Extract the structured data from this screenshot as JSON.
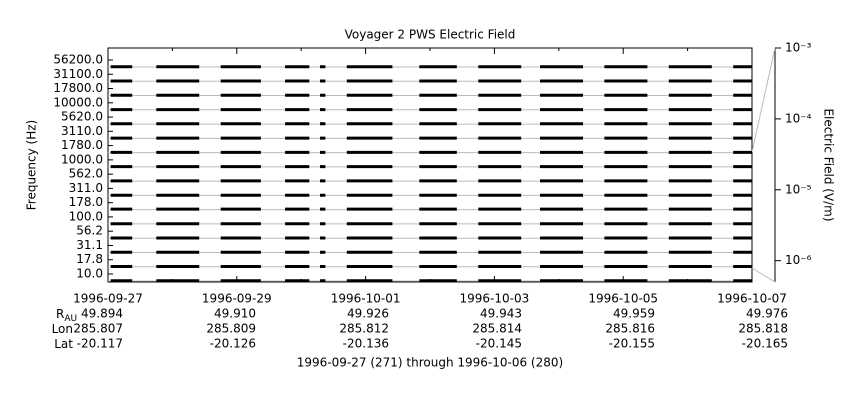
{
  "chart_data": {
    "type": "strips",
    "title": "Voyager 2 PWS Electric Field",
    "ylabel": "Frequency (Hz)",
    "y2label": "Electric Field (V/m)",
    "footer": "1996-09-27 (271) through 1996-10-06 (280)",
    "xlim": [
      "1996-09-27",
      "1996-10-07"
    ],
    "xticks": [
      "1996-09-27",
      "1996-09-29",
      "1996-10-01",
      "1996-10-03",
      "1996-10-05",
      "1996-10-07"
    ],
    "xminor": [
      "1996-09-28",
      "1996-09-30",
      "1996-10-02",
      "1996-10-04",
      "1996-10-06"
    ],
    "y2lim": [
      5e-07,
      0.001
    ],
    "y2log": true,
    "y2ticks": [
      {
        "value": 0.001,
        "label": "10⁻³"
      },
      {
        "value": 0.0001,
        "label": "10⁻⁴"
      },
      {
        "value": 1e-05,
        "label": "10⁻⁵"
      },
      {
        "value": 1e-06,
        "label": "10⁻⁶"
      }
    ],
    "grid": true,
    "color": "#000000",
    "x": [
      "1996-09-27 01:00",
      "1996-09-27 09:00",
      "1996-09-27 14:00",
      "1996-09-27 18:00",
      "1996-09-28 10:00",
      "1996-09-28 14:00",
      "1996-09-28 18:00",
      "1996-09-29 09:00",
      "1996-09-29 14:00",
      "1996-09-29 18:00",
      "1996-09-30 03:00",
      "1996-09-30 05:00",
      "1996-09-30 07:00",
      "1996-09-30 09:00",
      "1996-09-30 13:00",
      "1996-09-30 17:00",
      "1996-10-01 10:00",
      "1996-10-01 15:00",
      "1996-10-01 20:00",
      "1996-10-02 10:00",
      "1996-10-02 14:00",
      "1996-10-02 18:00",
      "1996-10-03 10:00",
      "1996-10-03 14:00",
      "1996-10-03 17:00",
      "1996-10-04 09:00",
      "1996-10-04 13:00",
      "1996-10-04 17:00",
      "1996-10-05 09:00",
      "1996-10-05 13:00",
      "1996-10-05 17:00",
      "1996-10-06 09:00",
      "1996-10-06 13:00",
      "1996-10-06 17:00",
      "1996-10-07 00:00"
    ],
    "series": [
      {
        "name": "56200.0",
        "values": [
          6e-07,
          6e-07,
          null,
          6e-07,
          6e-07,
          null,
          6e-07,
          6e-07,
          null,
          6e-07,
          6e-07,
          null,
          6e-07,
          6e-07,
          null,
          6e-07,
          6e-07,
          null,
          6e-07,
          6e-07,
          null,
          6e-07,
          6e-07,
          null,
          6e-07,
          6e-07,
          null,
          6e-07,
          6e-07,
          null,
          6e-07,
          6e-07,
          null,
          6e-07,
          6e-07
        ]
      },
      {
        "name": "31100.0",
        "values": [
          6e-07,
          6e-07,
          null,
          6e-07,
          6e-07,
          null,
          6e-07,
          6e-07,
          null,
          6e-07,
          6e-07,
          null,
          6e-07,
          6e-07,
          null,
          6e-07,
          6e-07,
          null,
          6e-07,
          6e-07,
          null,
          6e-07,
          6e-07,
          null,
          6e-07,
          6e-07,
          null,
          6e-07,
          6e-07,
          null,
          6e-07,
          6e-07,
          null,
          6e-07,
          6e-07
        ]
      },
      {
        "name": "17800.0",
        "values": [
          6e-07,
          6e-07,
          null,
          6e-07,
          6e-07,
          null,
          6e-07,
          6e-07,
          null,
          6e-07,
          6e-07,
          null,
          6e-07,
          6e-07,
          null,
          6e-07,
          6e-07,
          null,
          6e-07,
          6e-07,
          null,
          6e-07,
          6e-07,
          null,
          6e-07,
          6e-07,
          null,
          6e-07,
          6e-07,
          null,
          6e-07,
          6e-07,
          null,
          6e-07,
          6e-07
        ]
      },
      {
        "name": "10000.0",
        "values": [
          6e-07,
          6e-07,
          null,
          6e-07,
          6e-07,
          null,
          6e-07,
          6e-07,
          null,
          6e-07,
          6e-07,
          null,
          6e-07,
          6e-07,
          null,
          6e-07,
          6e-07,
          null,
          6e-07,
          6e-07,
          null,
          6e-07,
          6e-07,
          null,
          6e-07,
          6e-07,
          null,
          6e-07,
          6e-07,
          null,
          6e-07,
          6e-07,
          null,
          6e-07,
          6e-07
        ]
      },
      {
        "name": "5620.0",
        "values": [
          6e-07,
          6e-07,
          null,
          6e-07,
          6e-07,
          null,
          6e-07,
          6e-07,
          null,
          6e-07,
          6e-07,
          null,
          6e-07,
          6e-07,
          null,
          6e-07,
          6e-07,
          null,
          6e-07,
          6e-07,
          null,
          6e-07,
          6e-07,
          null,
          6e-07,
          6e-07,
          null,
          6e-07,
          6e-07,
          null,
          6e-07,
          6e-07,
          null,
          6e-07,
          6e-07
        ]
      },
      {
        "name": "3110.0",
        "values": [
          6e-07,
          6e-07,
          null,
          6e-07,
          6e-07,
          null,
          6e-07,
          6e-07,
          null,
          6e-07,
          6e-07,
          null,
          6e-07,
          6e-07,
          null,
          6e-07,
          6e-07,
          null,
          6e-07,
          6e-07,
          null,
          6e-07,
          6e-07,
          null,
          6e-07,
          6e-07,
          null,
          6e-07,
          6e-07,
          null,
          6e-07,
          6e-07,
          null,
          6e-07,
          6e-07
        ]
      },
      {
        "name": "1780.0",
        "values": [
          6e-07,
          6e-07,
          null,
          6e-07,
          6e-07,
          null,
          6e-07,
          6e-07,
          null,
          6e-07,
          6e-07,
          null,
          6e-07,
          6e-07,
          null,
          6e-07,
          6e-07,
          null,
          6e-07,
          6e-07,
          null,
          6e-07,
          6e-07,
          null,
          6e-07,
          6e-07,
          null,
          6e-07,
          6e-07,
          null,
          6e-07,
          6e-07,
          null,
          6e-07,
          6e-07
        ]
      },
      {
        "name": "1000.0",
        "values": [
          6e-07,
          6e-07,
          null,
          6e-07,
          6e-07,
          null,
          6e-07,
          6e-07,
          null,
          6e-07,
          6e-07,
          null,
          6e-07,
          6e-07,
          null,
          6e-07,
          6e-07,
          null,
          6e-07,
          6e-07,
          null,
          6e-07,
          6e-07,
          null,
          6e-07,
          6e-07,
          null,
          6e-07,
          6e-07,
          null,
          6e-07,
          6e-07,
          null,
          6e-07,
          6e-07
        ]
      },
      {
        "name": "562.0",
        "values": [
          6e-07,
          6e-07,
          null,
          6e-07,
          6e-07,
          null,
          6e-07,
          6e-07,
          null,
          6e-07,
          6e-07,
          null,
          6e-07,
          6e-07,
          null,
          6e-07,
          6e-07,
          null,
          6e-07,
          6e-07,
          null,
          6e-07,
          6e-07,
          null,
          6e-07,
          6e-07,
          null,
          6e-07,
          6e-07,
          null,
          6e-07,
          6e-07,
          null,
          6e-07,
          6e-07
        ]
      },
      {
        "name": "311.0",
        "values": [
          6e-07,
          6e-07,
          null,
          6e-07,
          6e-07,
          null,
          6e-07,
          6e-07,
          null,
          6e-07,
          6e-07,
          null,
          6e-07,
          6e-07,
          null,
          6e-07,
          6e-07,
          null,
          6e-07,
          6e-07,
          null,
          6e-07,
          6e-07,
          null,
          6e-07,
          6e-07,
          null,
          6e-07,
          6e-07,
          null,
          6e-07,
          6e-07,
          null,
          6e-07,
          6e-07
        ]
      },
      {
        "name": "178.0",
        "values": [
          8e-07,
          8e-07,
          null,
          8e-07,
          8e-07,
          null,
          8e-07,
          8e-07,
          null,
          8e-07,
          8e-07,
          null,
          8e-07,
          8e-07,
          null,
          8e-07,
          8e-07,
          null,
          8e-07,
          8e-07,
          null,
          8e-07,
          8e-07,
          null,
          8e-07,
          8e-07,
          null,
          8e-07,
          8e-07,
          null,
          8e-07,
          8e-07,
          null,
          8e-07,
          8e-07
        ]
      },
      {
        "name": "100.0",
        "values": [
          6e-07,
          6e-07,
          null,
          6e-07,
          6e-07,
          null,
          6e-07,
          6e-07,
          null,
          6e-07,
          6e-07,
          null,
          6e-07,
          6e-07,
          null,
          6e-07,
          6e-07,
          null,
          6e-07,
          6e-07,
          null,
          6e-07,
          6e-07,
          null,
          6e-07,
          6e-07,
          null,
          6e-07,
          6e-07,
          null,
          6e-07,
          6e-07,
          null,
          6e-07,
          6e-07
        ]
      },
      {
        "name": "56.2",
        "values": [
          6e-07,
          6e-07,
          null,
          6e-07,
          6e-07,
          null,
          6e-07,
          6e-07,
          null,
          6e-07,
          6e-07,
          null,
          6e-07,
          6e-07,
          null,
          6e-07,
          6e-07,
          null,
          6e-07,
          6e-07,
          null,
          6e-07,
          6e-07,
          null,
          6e-07,
          6e-07,
          null,
          6e-07,
          6e-07,
          null,
          6e-07,
          6e-07,
          null,
          6e-07,
          6e-07
        ]
      },
      {
        "name": "31.1",
        "values": [
          6e-07,
          6e-07,
          null,
          6e-07,
          6e-07,
          null,
          6e-07,
          6e-07,
          null,
          6e-07,
          6e-07,
          null,
          6e-07,
          6e-07,
          null,
          6e-07,
          6e-07,
          null,
          6e-07,
          6e-07,
          null,
          6e-07,
          6e-07,
          null,
          6e-07,
          6e-07,
          null,
          6e-07,
          6e-07,
          null,
          6e-07,
          6e-07,
          null,
          6e-07,
          6e-07
        ]
      },
      {
        "name": "17.8",
        "values": [
          6e-07,
          6e-07,
          null,
          6e-07,
          6e-07,
          null,
          6e-07,
          6e-07,
          null,
          6e-07,
          6e-07,
          null,
          6e-07,
          6e-07,
          null,
          6e-07,
          6e-07,
          null,
          6e-07,
          6e-07,
          null,
          6e-07,
          6e-07,
          null,
          6e-07,
          6e-07,
          null,
          6e-07,
          6e-07,
          null,
          6e-07,
          6e-07,
          null,
          6e-07,
          6e-07
        ]
      },
      {
        "name": "10.0",
        "values": [
          6e-07,
          6e-07,
          null,
          6e-07,
          6e-07,
          null,
          6e-07,
          6e-07,
          null,
          6e-07,
          6e-07,
          null,
          6e-07,
          6e-07,
          null,
          6e-07,
          6e-07,
          null,
          6e-07,
          6e-07,
          null,
          6e-07,
          6e-07,
          null,
          6e-07,
          6e-07,
          null,
          6e-07,
          6e-07,
          null,
          6e-07,
          6e-07,
          null,
          6e-07,
          6e-07
        ]
      }
    ],
    "ephemeris": [
      {
        "label": "R",
        "sub": "AU",
        "values": [
          "49.894",
          "49.910",
          "49.926",
          "49.943",
          "49.959",
          "49.976"
        ]
      },
      {
        "label": "Lon",
        "values": [
          "285.807",
          "285.809",
          "285.812",
          "285.814",
          "285.816",
          "285.818"
        ]
      },
      {
        "label": "Lat",
        "values": [
          "-20.117",
          "-20.126",
          "-20.136",
          "-20.145",
          "-20.155",
          "-20.165"
        ]
      }
    ]
  }
}
